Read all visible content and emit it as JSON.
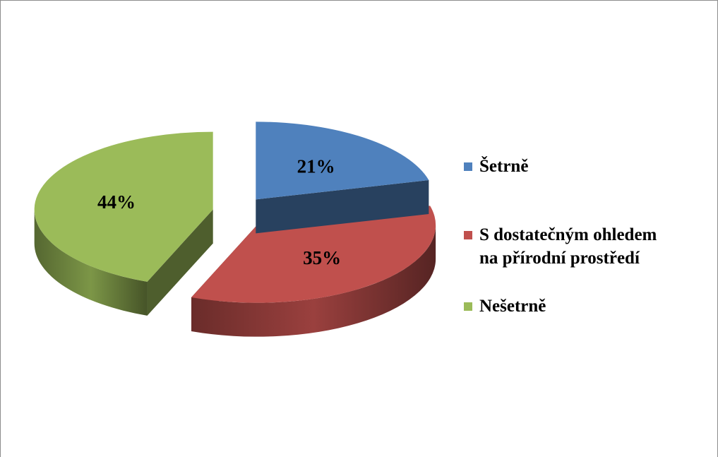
{
  "chart_data": {
    "type": "pie",
    "style": "3d-exploded",
    "title": "",
    "slices": [
      {
        "label": "Šetrně",
        "value": 21,
        "display": "21%",
        "color": "#4f81bd"
      },
      {
        "label": "S dostatečným ohledem\nna přírodní prostředí",
        "value": 35,
        "display": "35%",
        "color": "#c0504d"
      },
      {
        "label": "Nešetrně",
        "value": 44,
        "display": "44%",
        "color": "#9bbb59"
      }
    ],
    "legend_position": "right"
  }
}
